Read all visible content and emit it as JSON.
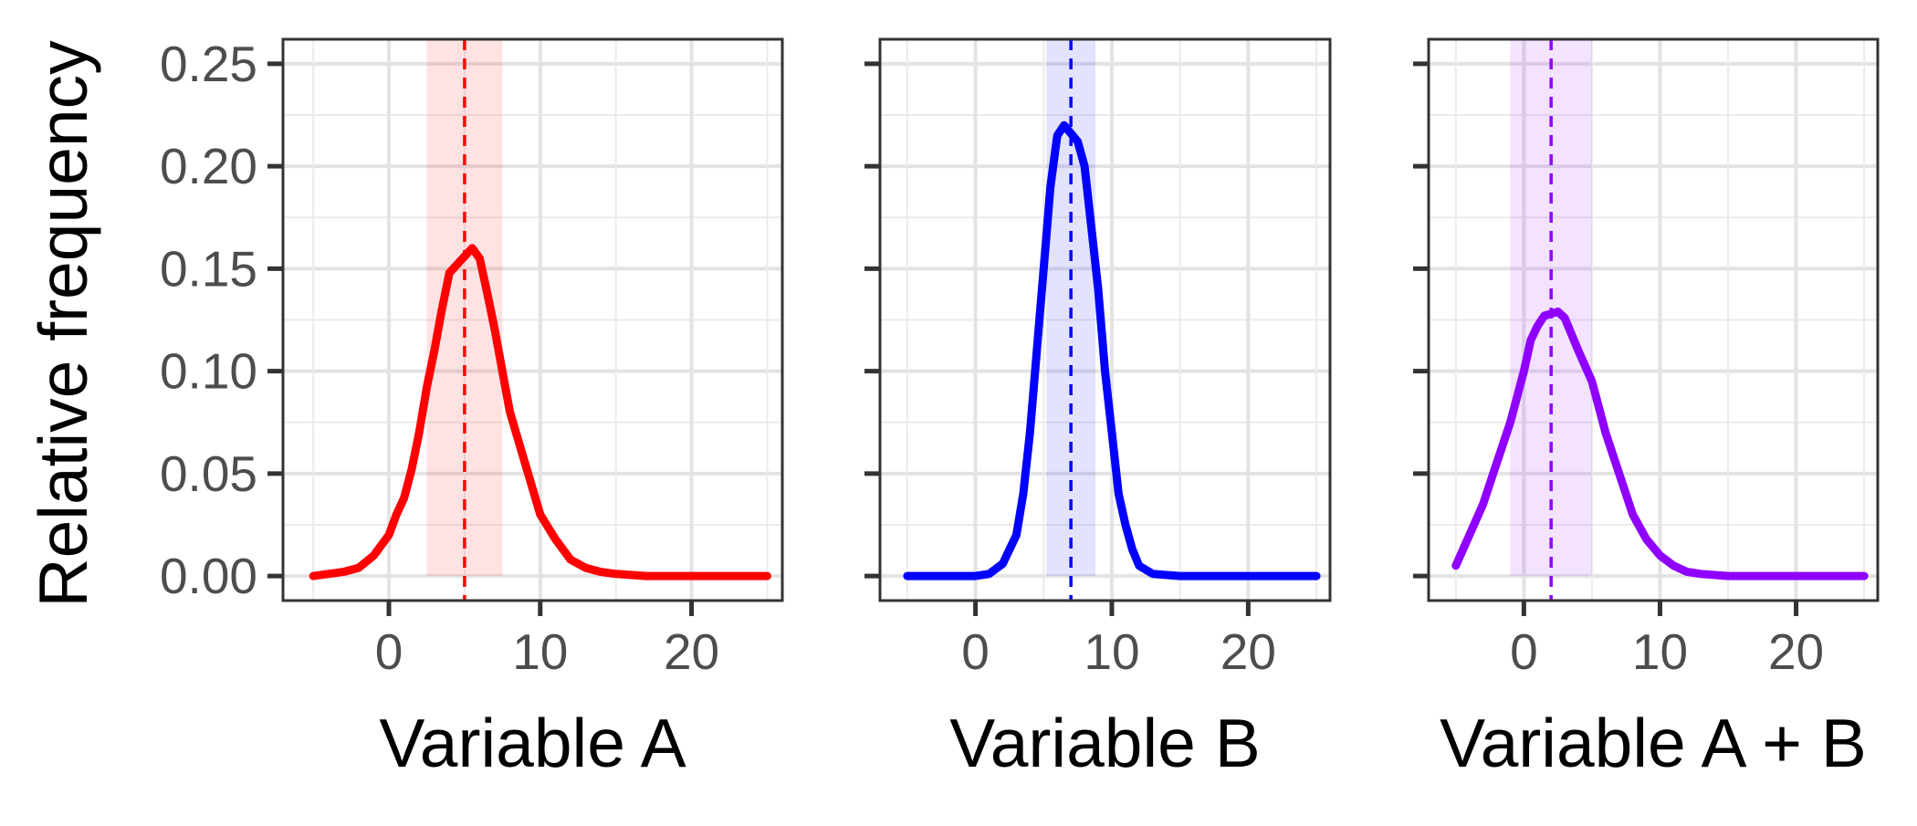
{
  "ylabel": "Relative frequency",
  "y_ticks": [
    "0.00",
    "0.05",
    "0.10",
    "0.15",
    "0.20",
    "0.25"
  ],
  "x_ticks": [
    "0",
    "10",
    "20"
  ],
  "chart_data": [
    {
      "type": "line",
      "xlabel": "Variable A",
      "ylabel": "Relative frequency",
      "color": "#ff0000",
      "xlim": [
        -7,
        26
      ],
      "ylim": [
        -0.012,
        0.262
      ],
      "x_ticks": [
        0,
        10,
        20
      ],
      "y_ticks": [
        0,
        0.05,
        0.1,
        0.15,
        0.2,
        0.25
      ],
      "vline": 5.0,
      "band": [
        2.5,
        7.5
      ],
      "grid": true,
      "series": [
        {
          "x": [
            -5,
            -4,
            -3,
            -2,
            -1,
            0,
            0.5,
            1,
            1.5,
            2,
            2.5,
            3,
            3.5,
            4,
            4.5,
            5,
            5.5,
            6,
            6.5,
            7,
            7.5,
            8,
            9,
            10,
            11,
            12,
            13,
            14,
            15,
            17,
            20,
            25
          ],
          "y": [
            0.0,
            0.001,
            0.002,
            0.004,
            0.01,
            0.02,
            0.03,
            0.038,
            0.052,
            0.07,
            0.092,
            0.11,
            0.13,
            0.148,
            0.152,
            0.156,
            0.16,
            0.155,
            0.138,
            0.12,
            0.1,
            0.08,
            0.055,
            0.03,
            0.018,
            0.008,
            0.004,
            0.002,
            0.001,
            0.0,
            0.0,
            0.0
          ]
        }
      ]
    },
    {
      "type": "line",
      "xlabel": "Variable B",
      "ylabel": "",
      "color": "#0000ff",
      "xlim": [
        -7,
        26
      ],
      "ylim": [
        -0.012,
        0.262
      ],
      "x_ticks": [
        0,
        10,
        20
      ],
      "y_ticks": [
        0,
        0.05,
        0.1,
        0.15,
        0.2,
        0.25
      ],
      "vline": 7.0,
      "band": [
        5.2,
        8.8
      ],
      "grid": true,
      "series": [
        {
          "x": [
            -5,
            -2,
            0,
            1,
            2,
            3,
            3.5,
            4,
            4.5,
            5,
            5.5,
            6,
            6.5,
            7,
            7.5,
            8,
            8.5,
            9,
            9.5,
            10,
            10.5,
            11,
            11.5,
            12,
            13,
            15,
            20,
            25
          ],
          "y": [
            0.0,
            0.0,
            0.0,
            0.001,
            0.006,
            0.02,
            0.04,
            0.07,
            0.11,
            0.15,
            0.19,
            0.215,
            0.22,
            0.216,
            0.212,
            0.2,
            0.17,
            0.14,
            0.1,
            0.07,
            0.04,
            0.025,
            0.013,
            0.005,
            0.001,
            0.0,
            0.0,
            0.0
          ]
        }
      ]
    },
    {
      "type": "line",
      "xlabel": "Variable A + B",
      "ylabel": "",
      "color": "#8f00ff",
      "xlim": [
        -7,
        26
      ],
      "ylim": [
        -0.012,
        0.262
      ],
      "x_ticks": [
        0,
        10,
        20
      ],
      "y_ticks": [
        0,
        0.05,
        0.1,
        0.15,
        0.2,
        0.25
      ],
      "vline": 2.0,
      "band": [
        -1.0,
        5.0
      ],
      "grid": true,
      "series": [
        {
          "x": [
            -5,
            -4,
            -3,
            -2,
            -1,
            0,
            0.5,
            1,
            1.5,
            2,
            2.5,
            3,
            3.5,
            4,
            5,
            6,
            7,
            8,
            9,
            10,
            11,
            12,
            13,
            15,
            18,
            20,
            25
          ],
          "y": [
            0.005,
            0.02,
            0.035,
            0.055,
            0.075,
            0.1,
            0.115,
            0.122,
            0.127,
            0.128,
            0.129,
            0.126,
            0.118,
            0.11,
            0.095,
            0.07,
            0.05,
            0.03,
            0.018,
            0.01,
            0.005,
            0.002,
            0.001,
            0.0,
            0.0,
            0.0,
            0.0
          ]
        }
      ]
    }
  ]
}
